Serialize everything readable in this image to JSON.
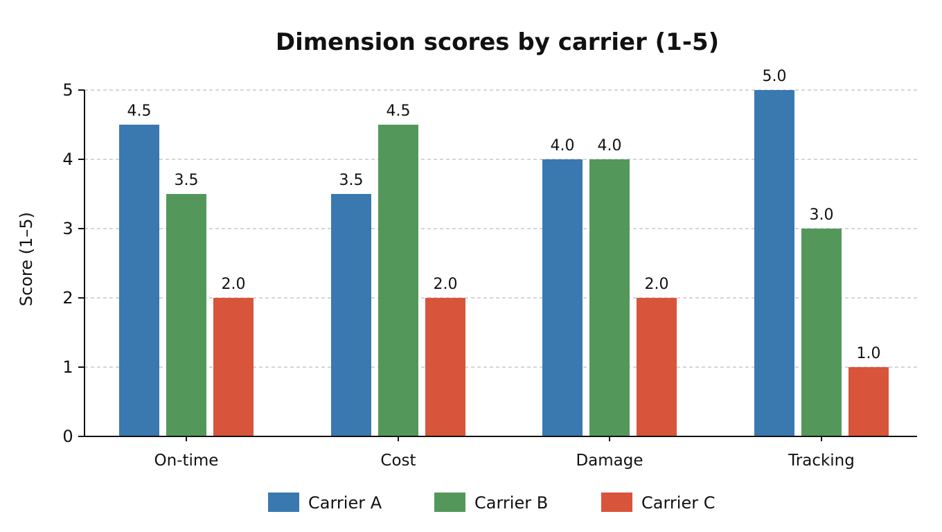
{
  "chart_data": {
    "type": "bar",
    "title": "Dimension scores by carrier (1-5)",
    "xlabel": "",
    "ylabel": "Score (1–5)",
    "ylim": [
      0,
      5
    ],
    "yticks": [
      0,
      1,
      2,
      3,
      4,
      5
    ],
    "grid": true,
    "legend_position": "bottom-center",
    "categories": [
      "On-time",
      "Cost",
      "Damage",
      "Tracking"
    ],
    "series": [
      {
        "name": "Carrier A",
        "color": "#3a78b0",
        "values": [
          4.5,
          3.5,
          4.0,
          5.0
        ]
      },
      {
        "name": "Carrier B",
        "color": "#53985a",
        "values": [
          3.5,
          4.5,
          4.0,
          3.0
        ]
      },
      {
        "name": "Carrier C",
        "color": "#d8543a",
        "values": [
          2.0,
          2.0,
          2.0,
          1.0
        ]
      }
    ],
    "value_label_format": "one-decimal"
  }
}
